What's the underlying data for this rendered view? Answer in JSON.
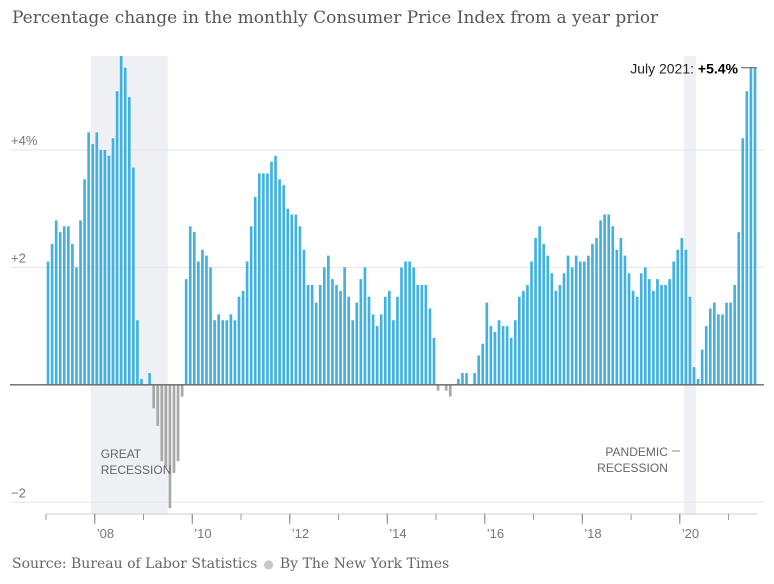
{
  "title": "Percentage change in the monthly Consumer Price Index from a year prior",
  "footer": {
    "source": "Source: Bureau of Labor Statistics",
    "credit": "By The New York Times"
  },
  "chart_data": {
    "type": "bar",
    "title": "Percentage change in the monthly Consumer Price Index from a year prior",
    "start_month": "2007-01",
    "frequency": "monthly",
    "ylim": [
      -2.2,
      5.6
    ],
    "y_ticks": [
      {
        "value": 4,
        "label": "+4%"
      },
      {
        "value": 2,
        "label": "+2"
      },
      {
        "value": -2,
        "label": "−2"
      }
    ],
    "x_ticks": [
      {
        "month": "2008-01",
        "label": "’08"
      },
      {
        "month": "2010-01",
        "label": "’10"
      },
      {
        "month": "2012-01",
        "label": "’12"
      },
      {
        "month": "2014-01",
        "label": "’14"
      },
      {
        "month": "2016-01",
        "label": "’16"
      },
      {
        "month": "2018-01",
        "label": "’18"
      },
      {
        "month": "2020-01",
        "label": "’20"
      }
    ],
    "grid": true,
    "colors": {
      "positive": "#43b1df",
      "negative": "#a8a8a8",
      "recession_band": "#eef0f3",
      "axis": "#666666",
      "grid": "#e6e6e6"
    },
    "recessions": [
      {
        "label_lines": [
          "GREAT",
          "RECESSION"
        ],
        "start": "2007-12",
        "end": "2009-06"
      },
      {
        "label_lines": [
          "PANDEMIC",
          "RECESSION"
        ],
        "start": "2020-02",
        "end": "2020-04"
      }
    ],
    "annotation": {
      "label": "July 2021:",
      "value_label": "+5.4%",
      "month": "2021-07"
    },
    "values": [
      2.1,
      2.4,
      2.8,
      2.6,
      2.7,
      2.7,
      2.4,
      2.0,
      2.8,
      3.5,
      4.3,
      4.1,
      4.3,
      4.0,
      4.0,
      3.9,
      4.2,
      5.0,
      5.6,
      5.4,
      4.9,
      3.7,
      1.1,
      0.1,
      0.0,
      0.2,
      -0.4,
      -0.7,
      -1.3,
      -1.4,
      -2.1,
      -1.5,
      -1.3,
      -0.2,
      1.8,
      2.7,
      2.6,
      2.1,
      2.3,
      2.2,
      2.0,
      1.1,
      1.2,
      1.1,
      1.1,
      1.2,
      1.1,
      1.5,
      1.6,
      2.1,
      2.7,
      3.2,
      3.6,
      3.6,
      3.6,
      3.8,
      3.9,
      3.5,
      3.4,
      3.0,
      2.9,
      2.9,
      2.7,
      2.3,
      1.7,
      1.7,
      1.4,
      1.7,
      2.0,
      2.2,
      1.8,
      1.7,
      1.6,
      2.0,
      1.5,
      1.1,
      1.4,
      1.8,
      2.0,
      1.5,
      1.2,
      1.0,
      1.2,
      1.5,
      1.6,
      1.1,
      1.5,
      2.0,
      2.1,
      2.1,
      2.0,
      1.7,
      1.7,
      1.7,
      1.3,
      0.8,
      -0.1,
      0.0,
      -0.1,
      -0.2,
      0.0,
      0.1,
      0.2,
      0.2,
      0.0,
      0.2,
      0.5,
      0.7,
      1.4,
      1.0,
      0.9,
      1.1,
      1.0,
      1.0,
      0.8,
      1.1,
      1.5,
      1.6,
      1.7,
      2.1,
      2.5,
      2.7,
      2.4,
      2.2,
      1.9,
      1.6,
      1.7,
      1.9,
      2.2,
      2.0,
      2.2,
      2.1,
      2.1,
      2.2,
      2.4,
      2.5,
      2.8,
      2.9,
      2.9,
      2.7,
      2.3,
      2.5,
      2.2,
      1.9,
      1.6,
      1.5,
      1.9,
      2.0,
      1.8,
      1.6,
      1.8,
      1.7,
      1.7,
      1.8,
      2.1,
      2.3,
      2.5,
      2.3,
      1.5,
      0.3,
      0.1,
      0.6,
      1.0,
      1.3,
      1.4,
      1.2,
      1.2,
      1.4,
      1.4,
      1.7,
      2.6,
      4.2,
      5.0,
      5.4,
      5.4
    ]
  }
}
